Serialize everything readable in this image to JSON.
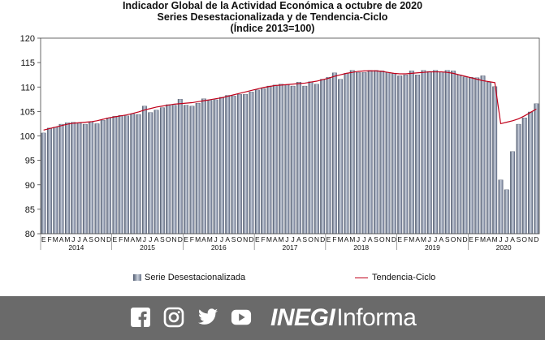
{
  "chart_data": {
    "type": "bar",
    "title": "Indicador Global de la Actividad Económica a octubre de 2020",
    "subtitle": "Series Desestacionalizada y de Tendencia-Ciclo",
    "subtitle2": "(Índice 2013=100)",
    "xlabel": "",
    "ylabel": "",
    "ylim": [
      80,
      120
    ],
    "yticks": [
      "80",
      "85",
      "90",
      "95",
      "100",
      "105",
      "110",
      "115",
      "120"
    ],
    "grid": false,
    "legend_position": "bottom",
    "month_letters": [
      "E",
      "F",
      "M",
      "A",
      "M",
      "J",
      "J",
      "A",
      "S",
      "O",
      "N",
      "D"
    ],
    "years": [
      "2014",
      "2015",
      "2016",
      "2017",
      "2018",
      "2019",
      "2020"
    ],
    "series": [
      {
        "name": "Serie Desestacionalizada",
        "type": "bar",
        "color": "#8a94a8",
        "values": [
          100.6,
          101.6,
          101.8,
          102.4,
          102.7,
          102.8,
          102.6,
          102.4,
          102.9,
          102.5,
          103.2,
          103.7,
          104.0,
          104.2,
          104.1,
          104.5,
          104.4,
          106.1,
          104.8,
          105.3,
          105.8,
          106.4,
          106.3,
          107.5,
          106.3,
          106.1,
          106.7,
          107.6,
          107.3,
          107.4,
          107.9,
          108.3,
          108.2,
          108.5,
          108.5,
          109.0,
          109.4,
          109.7,
          110.2,
          110.4,
          110.6,
          110.5,
          110.2,
          111.0,
          110.2,
          111.1,
          110.6,
          111.6,
          112.0,
          112.9,
          111.6,
          112.8,
          113.4,
          113.0,
          113.0,
          113.4,
          113.4,
          113.3,
          113.0,
          112.8,
          112.3,
          112.5,
          113.3,
          112.5,
          113.4,
          113.2,
          113.4,
          113.1,
          113.4,
          113.3,
          112.5,
          112.1,
          112.0,
          111.9,
          112.3,
          111.0,
          110.1,
          91.0,
          89.0,
          96.8,
          102.4,
          103.7,
          104.9,
          106.6
        ]
      },
      {
        "name": "Tendencia-Ciclo",
        "type": "line",
        "color": "#c0001a",
        "values": [
          101.2,
          101.5,
          101.8,
          102.1,
          102.4,
          102.6,
          102.7,
          102.8,
          102.9,
          103.1,
          103.4,
          103.7,
          103.9,
          104.1,
          104.3,
          104.6,
          104.9,
          105.3,
          105.6,
          105.9,
          106.1,
          106.3,
          106.5,
          106.6,
          106.7,
          106.8,
          107.0,
          107.2,
          107.4,
          107.6,
          107.8,
          108.1,
          108.4,
          108.7,
          109.0,
          109.3,
          109.6,
          109.9,
          110.1,
          110.3,
          110.4,
          110.5,
          110.6,
          110.7,
          110.8,
          111.0,
          111.2,
          111.5,
          111.8,
          112.2,
          112.5,
          112.8,
          113.0,
          113.2,
          113.3,
          113.3,
          113.3,
          113.2,
          113.0,
          112.8,
          112.7,
          112.7,
          112.8,
          112.9,
          113.0,
          113.1,
          113.1,
          113.1,
          113.0,
          112.8,
          112.5,
          112.2,
          111.9,
          111.6,
          111.3,
          111.1,
          110.9,
          102.5,
          102.8,
          103.1,
          103.5,
          104.1,
          104.8,
          105.5
        ]
      }
    ]
  },
  "footer": {
    "brand_bold": "INEGI",
    "brand_regular": "Informa",
    "icons": [
      "facebook-icon",
      "instagram-icon",
      "twitter-icon",
      "youtube-icon"
    ]
  }
}
